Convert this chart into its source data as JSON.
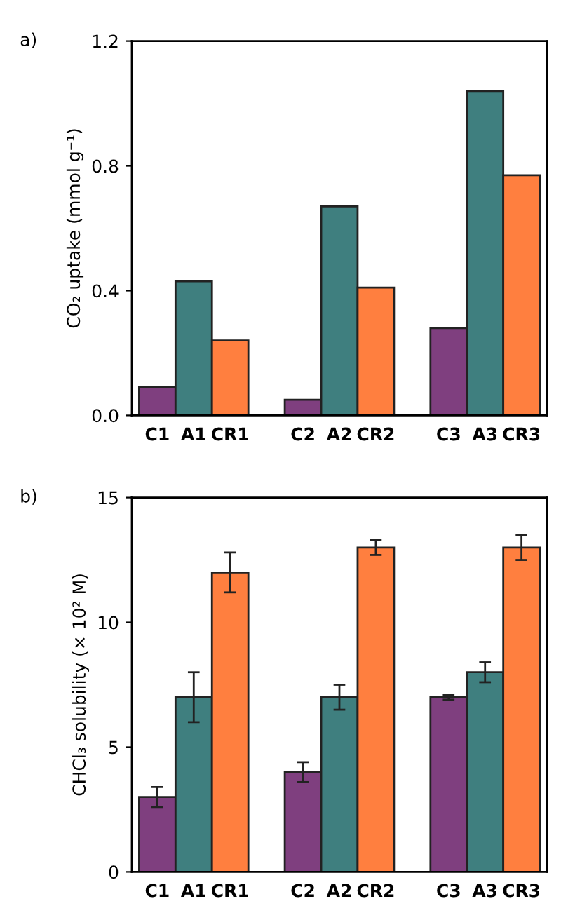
{
  "chart_data": [
    {
      "type": "bar",
      "title": "a)",
      "ylabel": "CO₂ uptake (mmol g⁻¹)",
      "categories": [
        "C1",
        "A1",
        "CR1",
        null,
        "C2",
        "A2",
        "CR2",
        null,
        "C3",
        "A3",
        "CR3"
      ],
      "values": [
        0.09,
        0.43,
        0.24,
        null,
        0.05,
        0.67,
        0.41,
        null,
        0.28,
        1.04,
        0.77
      ],
      "colors": [
        "#7f3f7f",
        "#3f7f7f",
        "#ff7f3f",
        null,
        "#7f3f7f",
        "#3f7f7f",
        "#ff7f3f",
        null,
        "#7f3f7f",
        "#3f7f7f",
        "#ff7f3f"
      ],
      "ylim": [
        0,
        1.2
      ],
      "yticks": [
        {
          "value": 0,
          "label": "0.0"
        },
        0.4,
        0.8,
        1.2
      ],
      "grid": false,
      "legend": false
    },
    {
      "type": "bar",
      "title": "b)",
      "ylabel": "CHCl₃ solubility (× 10² M)",
      "categories": [
        "C1",
        "A1",
        "CR1",
        null,
        "C2",
        "A2",
        "CR2",
        null,
        "C3",
        "A3",
        "CR3"
      ],
      "values": [
        3,
        7,
        12,
        null,
        4,
        7,
        13,
        null,
        7,
        8,
        13
      ],
      "errors": [
        0.4,
        1,
        0.8,
        null,
        0.4,
        0.5,
        0.3,
        null,
        0.1,
        0.4,
        0.5
      ],
      "colors": [
        "#7f3f7f",
        "#3f7f7f",
        "#ff7f3f",
        null,
        "#7f3f7f",
        "#3f7f7f",
        "#ff7f3f",
        null,
        "#7f3f7f",
        "#3f7f7f",
        "#ff7f3f"
      ],
      "ylim": [
        0,
        15
      ],
      "yticks": [
        0,
        5,
        10,
        15
      ],
      "grid": false,
      "legend": false
    }
  ]
}
